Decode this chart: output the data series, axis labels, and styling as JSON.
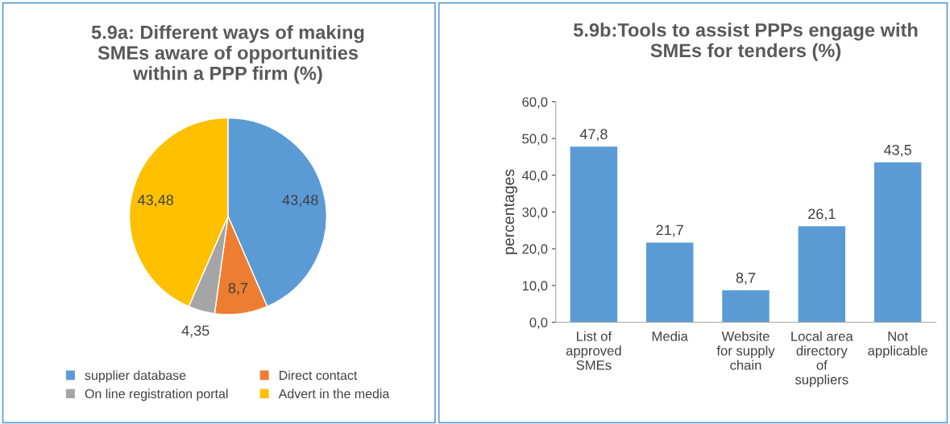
{
  "chart_data": [
    {
      "type": "pie",
      "title": "5.9a: Different ways of making\nSMEs aware of opportunities\nwithin a PPP firm (%)",
      "categories": [
        "supplier database",
        "Direct contact",
        "On line registration portal",
        "Advert in the media"
      ],
      "values": [
        43.48,
        8.7,
        4.35,
        43.48
      ],
      "value_labels": [
        "43,48",
        "8,7",
        "4,35",
        "43,48"
      ],
      "colors": [
        "#5b9bd5",
        "#ed7d31",
        "#a5a5a5",
        "#ffc000"
      ],
      "legend": "bottom"
    },
    {
      "type": "bar",
      "title": "5.9b:Tools to assist PPPs engage with\nSMEs for tenders (%)",
      "ylabel": "percentages",
      "categories": [
        "List of\napproved\nSMEs",
        "Media",
        "Website\nfor supply\nchain",
        "Local area\ndirectory\nof\nsuppliers",
        "Not\napplicable"
      ],
      "values": [
        47.8,
        21.7,
        8.7,
        26.1,
        43.5
      ],
      "value_labels": [
        "47,8",
        "21,7",
        "8,7",
        "26,1",
        "43,5"
      ],
      "color": "#5b9bd5",
      "ylim": [
        0,
        60
      ],
      "yticks": [
        {
          "value": 0,
          "label": "0,0"
        },
        {
          "value": 10,
          "label": "10,0"
        },
        {
          "value": 20,
          "label": "20,0"
        },
        {
          "value": 30,
          "label": "30,0"
        },
        {
          "value": 40,
          "label": "40,0"
        },
        {
          "value": 50,
          "label": "50,0"
        },
        {
          "value": 60,
          "label": "60,0"
        }
      ],
      "grid": false
    }
  ]
}
